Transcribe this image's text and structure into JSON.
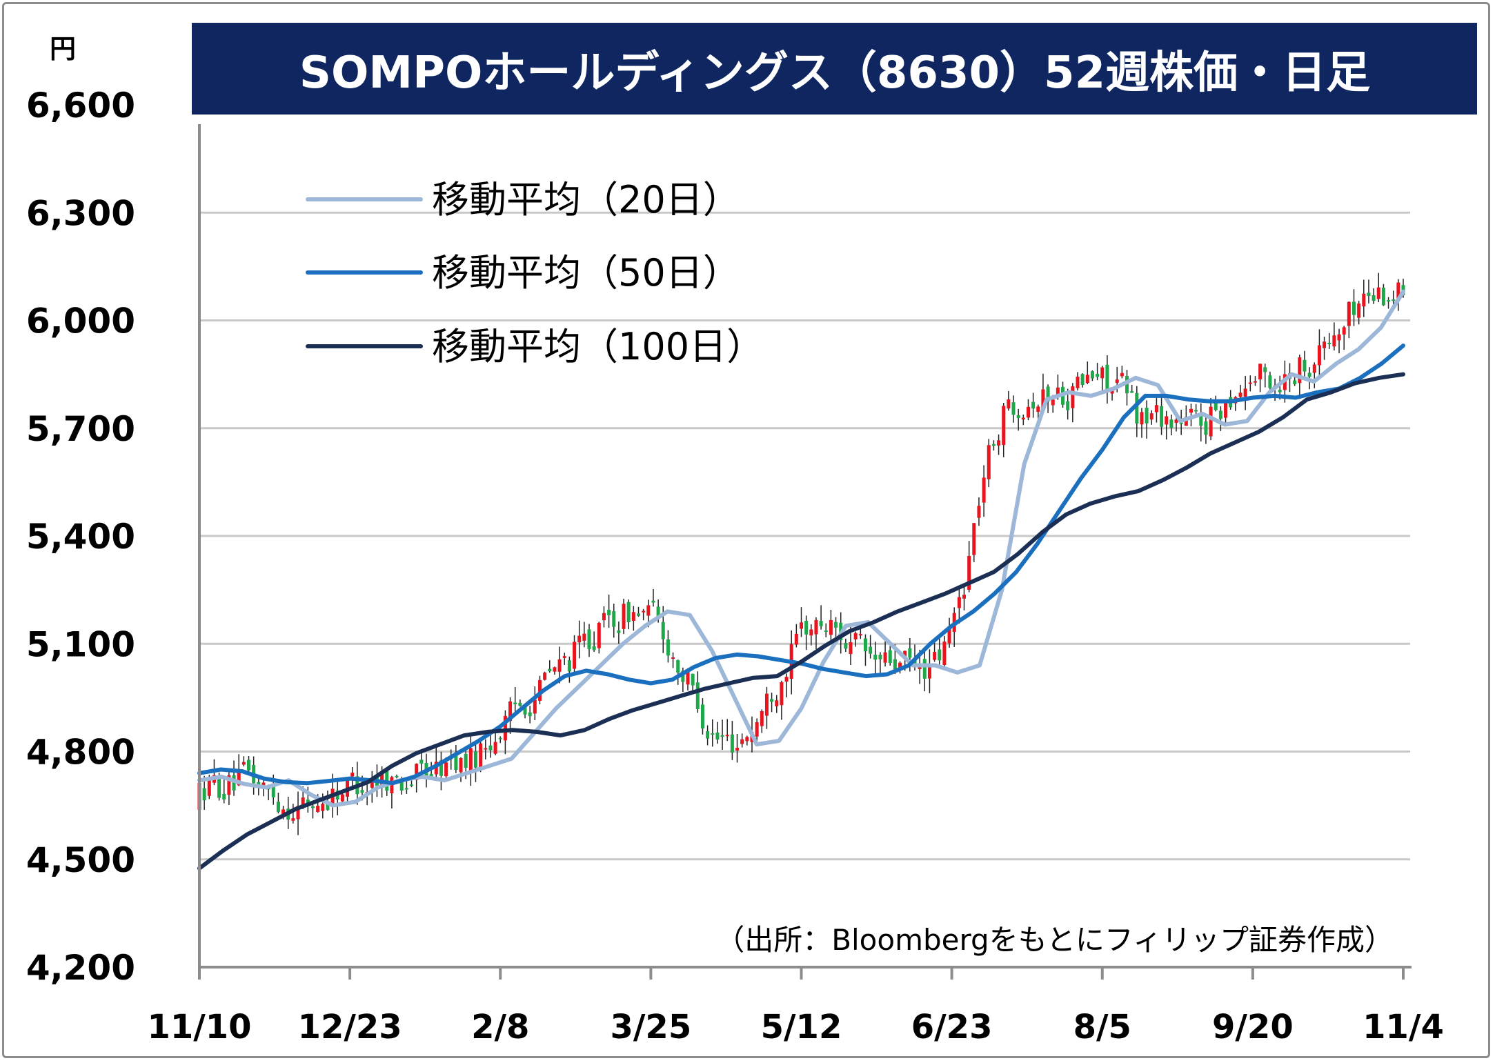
{
  "chart_data": {
    "type": "candlestick",
    "title": "SOMPOホールディングス（8630）52週株価・日足",
    "yunit": "円",
    "ylim": [
      4200,
      6600
    ],
    "yticks": [
      4200,
      4500,
      4800,
      5100,
      5400,
      5700,
      6000,
      6300,
      6600
    ],
    "ytick_labels": [
      "4,200",
      "4,500",
      "4,800",
      "5,100",
      "5,400",
      "5,700",
      "6,000",
      "6,300",
      "6,600"
    ],
    "xtick_labels": [
      "11/10",
      "12/23",
      "2/8",
      "3/25",
      "5/12",
      "6/23",
      "8/5",
      "9/20",
      "11/4"
    ],
    "grid": true,
    "legend_position": "top-left",
    "source": "（出所：Bloombergをもとにフィリップ証券作成）",
    "colors": {
      "up": "#e8141e",
      "down": "#1ea84a",
      "ma20": "#9db7d9",
      "ma50": "#1a6fbf",
      "ma100": "#1b2f55",
      "title_bg": "#0f2660",
      "grid": "#c8c8c8"
    },
    "series": [
      {
        "name": "移動平均（20日）",
        "values": [
          4720,
          4730,
          4710,
          4700,
          4720,
          4680,
          4650,
          4660,
          4700,
          4720,
          4730,
          4720,
          4740,
          4760,
          4780,
          4850,
          4920,
          4980,
          5040,
          5100,
          5150,
          5190,
          5180,
          5080,
          4950,
          4820,
          4830,
          4920,
          5050,
          5150,
          5160,
          5100,
          5040,
          5040,
          5020,
          5040,
          5250,
          5600,
          5780,
          5800,
          5790,
          5810,
          5840,
          5820,
          5720,
          5740,
          5710,
          5720,
          5800,
          5850,
          5830,
          5880,
          5920,
          5980,
          6080
        ]
      },
      {
        "name": "移動平均（50日）",
        "values": [
          4740,
          4750,
          4745,
          4725,
          4715,
          4712,
          4718,
          4725,
          4720,
          4712,
          4730,
          4760,
          4795,
          4830,
          4870,
          4920,
          4970,
          5010,
          5025,
          5015,
          5000,
          4990,
          5000,
          5035,
          5060,
          5070,
          5065,
          5055,
          5045,
          5030,
          5020,
          5010,
          5015,
          5040,
          5100,
          5150,
          5190,
          5240,
          5300,
          5380,
          5470,
          5560,
          5640,
          5730,
          5790,
          5790,
          5780,
          5775,
          5775,
          5785,
          5790,
          5785,
          5800,
          5810,
          5840,
          5880,
          5930
        ]
      },
      {
        "name": "移動平均（100日）",
        "values": [
          4475,
          4525,
          4570,
          4605,
          4640,
          4665,
          4690,
          4715,
          4760,
          4795,
          4820,
          4845,
          4855,
          4860,
          4855,
          4845,
          4860,
          4890,
          4915,
          4935,
          4955,
          4975,
          4990,
          5005,
          5010,
          5050,
          5095,
          5135,
          5160,
          5190,
          5215,
          5240,
          5270,
          5300,
          5350,
          5410,
          5460,
          5490,
          5510,
          5525,
          5555,
          5590,
          5630,
          5660,
          5690,
          5730,
          5780,
          5800,
          5825,
          5840,
          5850
        ]
      }
    ]
  }
}
